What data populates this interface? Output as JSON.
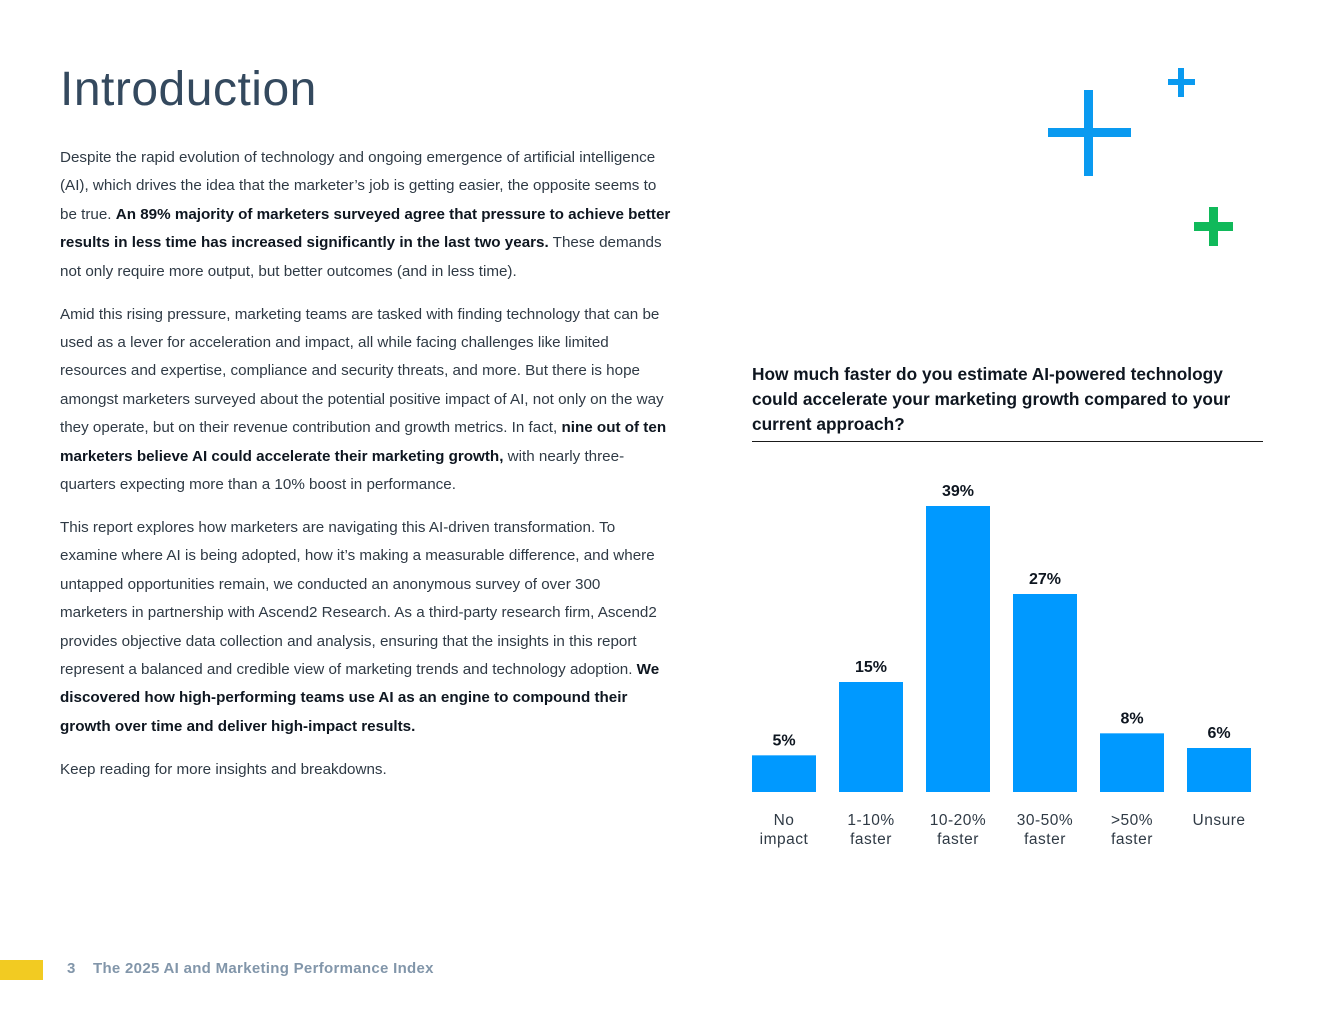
{
  "page": {
    "title": "Introduction",
    "page_number": "3",
    "report_title": "The 2025 AI and Marketing Performance Index"
  },
  "paragraphs": [
    {
      "t1": "Despite the rapid evolution of technology and ongoing emergence of artificial intelligence (AI), which drives the idea that the marketer’s job is getting easier, the opposite seems to be true. ",
      "b1": "An 89% majority of marketers surveyed agree that pressure to achieve better results in less time has increased significantly in the last two years.",
      "t2": " These demands not only require more output, but better outcomes (and in less time)."
    },
    {
      "t1": "Amid this rising pressure, marketing teams are tasked with finding technology that can be used as a lever for acceleration and impact, all while facing challenges like limited resources and expertise, compliance and security threats, and more. But there is hope amongst marketers surveyed about the potential positive impact of AI, not only on the way they operate, but on their revenue contribution and growth metrics. In fact, ",
      "b1": "nine out of ten marketers believe AI could accelerate their marketing growth,",
      "t2": " with nearly three-quarters expecting more than a 10% boost in performance."
    },
    {
      "t1": "This report explores how marketers are navigating this AI-driven transformation. To examine where AI is being adopted, how it’s making a measurable difference, and where untapped opportunities remain, we conducted an anonymous survey of over 300 marketers in partnership with Ascend2 Research. As a third-party research firm, Ascend2 provides objective data collection and analysis, ensuring that the insights in this report represent a balanced and credible view of marketing trends and technology adoption. ",
      "b1": "We discovered how high-performing teams use AI as an engine to compound their growth over time and deliver high-impact results."
    },
    {
      "t1": "Keep reading for more insights and breakdowns."
    }
  ],
  "colors": {
    "bar": "#0099ff",
    "plus_blue": "#0a9af0",
    "plus_green": "#10b95a",
    "footer_accent": "#f2cb22"
  },
  "chart_data": {
    "type": "bar",
    "title": "How much faster do you estimate AI-powered technology could accelerate your marketing growth compared to your current approach?",
    "categories": [
      [
        "No",
        "impact"
      ],
      [
        "1-10%",
        "faster"
      ],
      [
        "10-20%",
        "faster"
      ],
      [
        "30-50%",
        "faster"
      ],
      [
        ">50%",
        "faster"
      ],
      [
        "Unsure"
      ]
    ],
    "values": [
      5,
      15,
      39,
      27,
      8,
      6
    ],
    "value_labels": [
      "5%",
      "15%",
      "39%",
      "27%",
      "8%",
      "6%"
    ],
    "ylim": [
      0,
      39
    ],
    "grid": false,
    "legend": "none"
  }
}
